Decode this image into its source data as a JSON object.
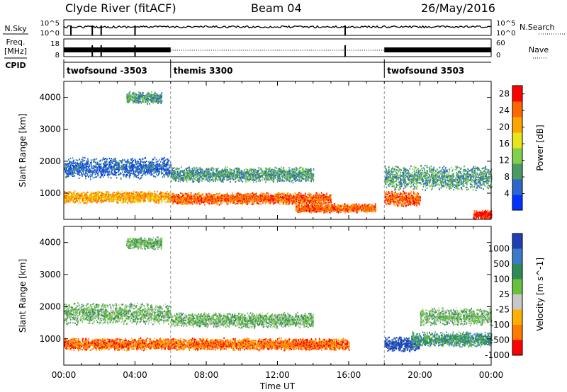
{
  "header": {
    "station": "Clyde River (fitACF)",
    "beam": "Beam 04",
    "date": "26/May/2016"
  },
  "panels": {
    "noise": {
      "left_label": "N.Sky",
      "right_label": "N.Search",
      "left_ticks": [
        "10^5",
        "10^0"
      ],
      "right_ticks": [
        "10^5",
        "10^0"
      ]
    },
    "freq": {
      "left_label_1": "Freq.",
      "left_label_2": "[MHz]",
      "right_label": "Nave",
      "left_ticks": [
        "18",
        "8"
      ],
      "right_ticks": [
        "60",
        "0"
      ]
    },
    "cpid": {
      "label": "CPID",
      "modes": [
        {
          "name": "twofsound -3503",
          "start": 0.0,
          "end": 6.0
        },
        {
          "name": "themis 3300",
          "start": 6.0,
          "end": 18.0
        },
        {
          "name": "twofsound 3503",
          "start": 18.0,
          "end": 24.0
        }
      ]
    }
  },
  "chart_data": [
    {
      "type": "heatmap",
      "title": "",
      "xlabel": "Time UT",
      "ylabel": "Slant Range [km]",
      "xlim": [
        0,
        24
      ],
      "ylim": [
        180,
        4500
      ],
      "x_tick_labels": [
        "00:00",
        "04:00",
        "08:00",
        "12:00",
        "16:00",
        "20:00",
        "00:00"
      ],
      "y_ticks": [
        1000,
        2000,
        3000,
        4000
      ],
      "colorbar": {
        "label": "Power [dB]",
        "ticks": [
          4,
          8,
          12,
          16,
          20,
          24,
          28
        ],
        "range": [
          0,
          30
        ],
        "colors": [
          "#0033ff",
          "#2a66cc",
          "#4a9a66",
          "#7fd04a",
          "#e6e619",
          "#ffa500",
          "#ff6600",
          "#ff0000"
        ]
      },
      "scatter_bands": [
        {
          "t_start": 0.0,
          "t_end": 6.0,
          "range_km": 1800,
          "width_km": 350,
          "value_db": 7
        },
        {
          "t_start": 0.0,
          "t_end": 6.0,
          "range_km": 900,
          "width_km": 200,
          "value_db": 20
        },
        {
          "t_start": 3.5,
          "t_end": 5.5,
          "range_km": 4000,
          "width_km": 200,
          "value_db": 10
        },
        {
          "t_start": 6.0,
          "t_end": 14.0,
          "range_km": 1600,
          "width_km": 250,
          "value_db": 10
        },
        {
          "t_start": 6.0,
          "t_end": 15.0,
          "range_km": 850,
          "width_km": 200,
          "value_db": 24
        },
        {
          "t_start": 13.0,
          "t_end": 17.5,
          "range_km": 550,
          "width_km": 150,
          "value_db": 24
        },
        {
          "t_start": 18.0,
          "t_end": 20.0,
          "range_km": 850,
          "width_km": 250,
          "value_db": 26
        },
        {
          "t_start": 18.0,
          "t_end": 24.0,
          "range_km": 1500,
          "width_km": 400,
          "value_db": 8
        },
        {
          "t_start": 23.0,
          "t_end": 24.0,
          "range_km": 350,
          "width_km": 150,
          "value_db": 28
        }
      ]
    },
    {
      "type": "heatmap",
      "title": "",
      "xlabel": "Time UT",
      "ylabel": "Slant Range [km]",
      "xlim": [
        0,
        24
      ],
      "ylim": [
        180,
        4500
      ],
      "x_tick_labels": [
        "00:00",
        "04:00",
        "08:00",
        "12:00",
        "16:00",
        "20:00",
        "00:00"
      ],
      "y_ticks": [
        1000,
        2000,
        3000,
        4000
      ],
      "colorbar": {
        "label": "Velocity [m s^-1]",
        "tick_labels": [
          "1000",
          "500",
          "100",
          "25",
          "-25",
          "-100",
          "-500",
          "-1000"
        ],
        "colors": [
          "#1f3fb3",
          "#3b7ac8",
          "#2e8b57",
          "#66c23b",
          "#c8c8c8",
          "#ffb000",
          "#ff7a00",
          "#ff0000"
        ]
      },
      "scatter_bands": [
        {
          "t_start": 0.0,
          "t_end": 6.0,
          "range_km": 1800,
          "width_km": 350,
          "value": "25"
        },
        {
          "t_start": 0.0,
          "t_end": 6.0,
          "range_km": 850,
          "width_km": 200,
          "value": "-500"
        },
        {
          "t_start": 3.5,
          "t_end": 5.5,
          "range_km": 4000,
          "width_km": 200,
          "value": "25"
        },
        {
          "t_start": 6.0,
          "t_end": 14.0,
          "range_km": 1600,
          "width_km": 250,
          "value": "25"
        },
        {
          "t_start": 6.0,
          "t_end": 16.0,
          "range_km": 850,
          "width_km": 200,
          "value": "-500"
        },
        {
          "t_start": 18.0,
          "t_end": 20.0,
          "range_km": 850,
          "width_km": 250,
          "value": "1000"
        },
        {
          "t_start": 19.5,
          "t_end": 24.0,
          "range_km": 1000,
          "width_km": 250,
          "value": "100"
        },
        {
          "t_start": 20.0,
          "t_end": 24.0,
          "range_km": 1700,
          "width_km": 300,
          "value": "25"
        }
      ]
    }
  ]
}
